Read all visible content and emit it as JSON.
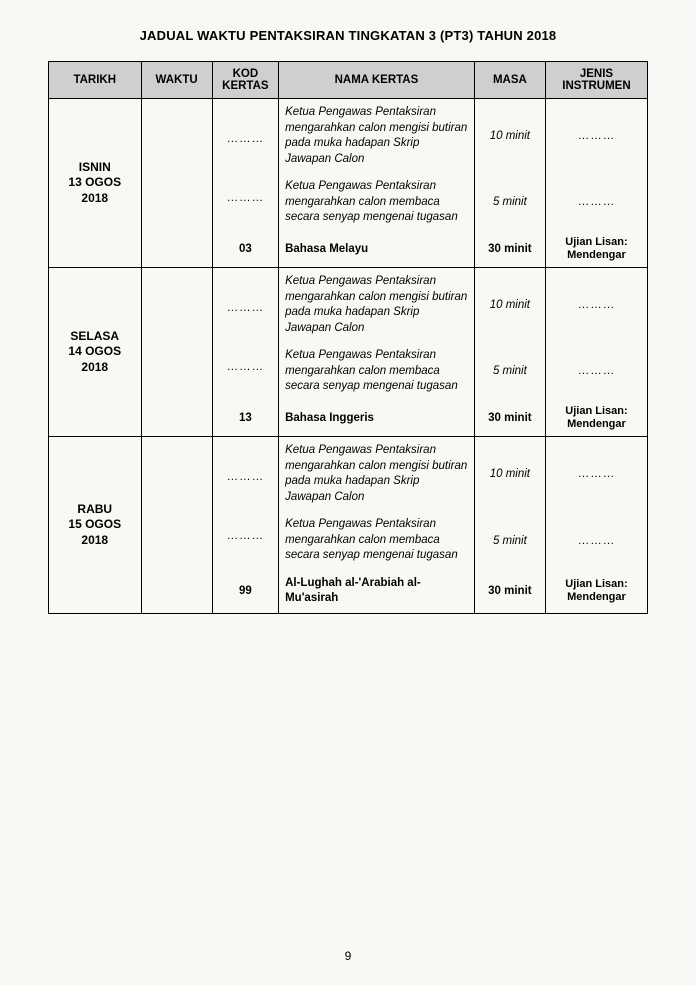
{
  "title": "JADUAL WAKTU PENTAKSIRAN TINGKATAN 3 (PT3) TAHUN 2018",
  "page_number": "9",
  "header": {
    "tarikh": "TARIKH",
    "waktu": "WAKTU",
    "kod": "KOD KERTAS",
    "nama": "NAMA KERTAS",
    "masa": "MASA",
    "jenis": "JENIS INSTRUMEN"
  },
  "dots": "………",
  "days": [
    {
      "tarikh": "ISNIN\n13 OGOS\n2018",
      "rows": [
        {
          "kod": "………",
          "nama": "Ketua Pengawas Pentaksiran mengarahkan calon mengisi butiran pada muka hadapan Skrip Jawapan Calon",
          "masa": "10 minit",
          "jenis": "………",
          "bold": false
        },
        {
          "kod": "………",
          "nama": "Ketua Pengawas Pentaksiran mengarahkan calon membaca secara senyap mengenai tugasan",
          "masa": "5 minit",
          "jenis": "………",
          "bold": false
        },
        {
          "kod": "03",
          "nama": "Bahasa Melayu",
          "masa": "30 minit",
          "jenis": "Ujian Lisan: Mendengar",
          "bold": true
        }
      ]
    },
    {
      "tarikh": "SELASA\n14 OGOS\n2018",
      "rows": [
        {
          "kod": "………",
          "nama": "Ketua Pengawas Pentaksiran mengarahkan calon mengisi butiran pada muka hadapan Skrip Jawapan Calon",
          "masa": "10 minit",
          "jenis": "………",
          "bold": false
        },
        {
          "kod": "………",
          "nama": "Ketua Pengawas Pentaksiran mengarahkan calon membaca secara senyap mengenai tugasan",
          "masa": "5 minit",
          "jenis": "………",
          "bold": false
        },
        {
          "kod": "13",
          "nama": "Bahasa Inggeris",
          "masa": "30 minit",
          "jenis": "Ujian Lisan: Mendengar",
          "bold": true
        }
      ]
    },
    {
      "tarikh": "RABU\n15 OGOS\n2018",
      "rows": [
        {
          "kod": "………",
          "nama": "Ketua Pengawas Pentaksiran mengarahkan calon mengisi butiran pada muka hadapan Skrip Jawapan Calon",
          "masa": "10 minit",
          "jenis": "………",
          "bold": false
        },
        {
          "kod": "………",
          "nama": "Ketua Pengawas Pentaksiran mengarahkan calon membaca secara senyap mengenai tugasan",
          "masa": "5 minit",
          "jenis": "………",
          "bold": false
        },
        {
          "kod": "99",
          "nama": "Al-Lughah al-'Arabiah al-Mu'asirah",
          "masa": "30 minit",
          "jenis": "Ujian Lisan: Mendengar",
          "bold": true
        }
      ]
    }
  ]
}
